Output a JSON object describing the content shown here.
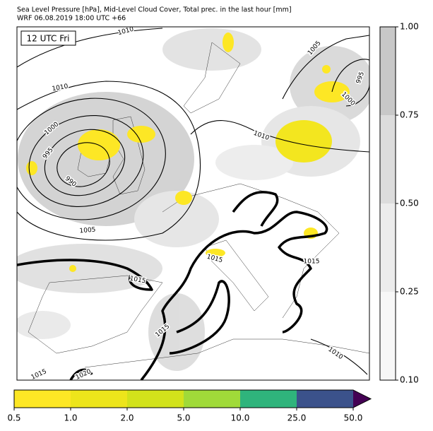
{
  "header": {
    "title": "Sea Level Pressure [hPa], Mid-Level Cloud Cover, Total prec. in the last hour [mm]",
    "subtitle": "WRF 06.08.2019 18:00 UTC +66"
  },
  "panel_label": "12 UTC Fri",
  "isobar_labels": [
    "1010",
    "1005",
    "995",
    "1000",
    "1010",
    "1000",
    "995",
    "990",
    "1010",
    "1005",
    "1015",
    "1015",
    "1015",
    "1015",
    "1010",
    "1015",
    "1020"
  ],
  "cloud_colorbar": {
    "colors": [
      "#f7f7f7",
      "#ececec",
      "#dcdcdc",
      "#c8c8c8"
    ],
    "ticks": [
      {
        "value": 0.1,
        "label": "0.10"
      },
      {
        "value": 0.25,
        "label": "0.25"
      },
      {
        "value": 0.5,
        "label": "0.50"
      },
      {
        "value": 0.75,
        "label": "0.75"
      },
      {
        "value": 1.0,
        "label": "1.00"
      }
    ]
  },
  "precip_colorbar": {
    "colors": [
      "#fde725",
      "#ede51b",
      "#d2e21b",
      "#a0da39",
      "#2fb47c",
      "#3b528b"
    ],
    "extend_color": "#440154",
    "ticks": [
      0.5,
      {
        "value": 1.0,
        "label": "1.0"
      },
      {
        "value": 2.0,
        "label": "2.0"
      },
      {
        "value": 5.0,
        "label": "5.0"
      },
      {
        "value": 10.0,
        "label": "10.0"
      },
      {
        "value": 25.0,
        "label": "25.0"
      },
      {
        "value": 50.0,
        "label": "50.0"
      }
    ]
  }
}
